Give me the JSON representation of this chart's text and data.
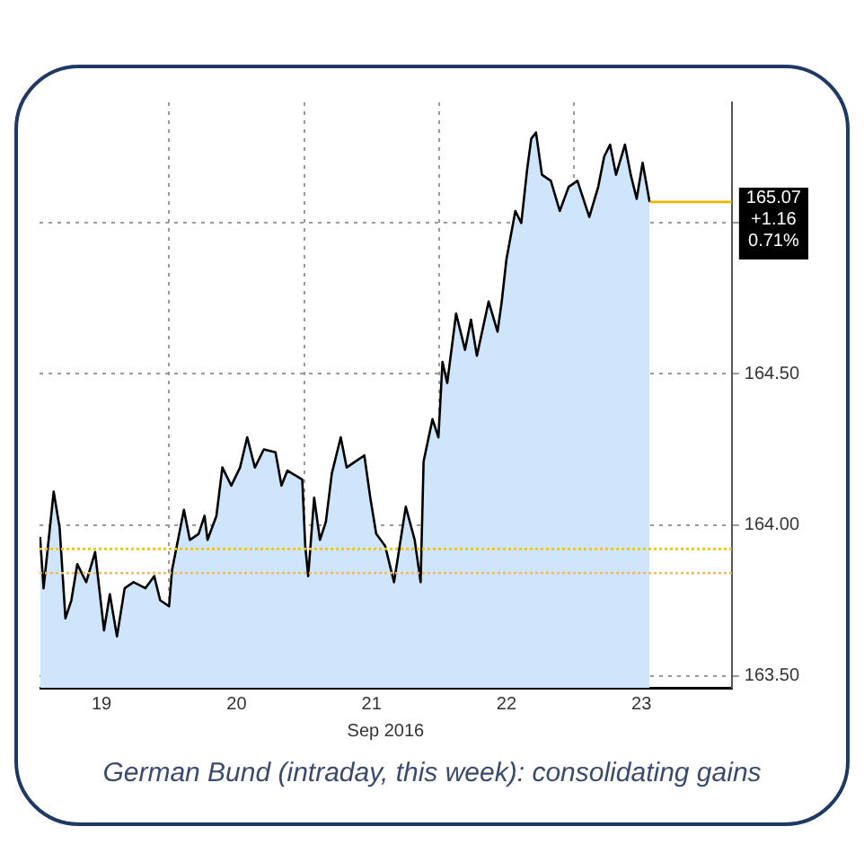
{
  "chart_data": {
    "type": "area",
    "title": "German Bund (intraday, this week): consolidating gains",
    "xlabel": "Sep 2016",
    "x": [
      18.544,
      18.57,
      18.645,
      18.689,
      18.732,
      18.776,
      18.82,
      18.886,
      18.952,
      19.018,
      19.061,
      19.114,
      19.171,
      19.237,
      19.325,
      19.39,
      19.434,
      19.5,
      19.522,
      19.61,
      19.654,
      19.719,
      19.763,
      19.785,
      19.851,
      19.895,
      19.961,
      20.026,
      20.079,
      20.136,
      20.202,
      20.289,
      20.333,
      20.377,
      20.487,
      20.509,
      20.531,
      20.575,
      20.618,
      20.662,
      20.706,
      20.772,
      20.816,
      20.882,
      20.947,
      20.991,
      21.035,
      21.101,
      21.167,
      21.254,
      21.32,
      21.364,
      21.386,
      21.452,
      21.496,
      21.526,
      21.561,
      21.627,
      21.693,
      21.737,
      21.781,
      21.868,
      21.934,
      21.965,
      22.0,
      22.066,
      22.11,
      22.154,
      22.184,
      22.219,
      22.263,
      22.329,
      22.395,
      22.461,
      22.526,
      22.57,
      22.614,
      22.68,
      22.724,
      22.768,
      22.812,
      22.878,
      22.921,
      22.965,
      23.009,
      23.061
    ],
    "series": [
      {
        "color": "#000000",
        "values": [
          163.96,
          163.79,
          164.11,
          163.99,
          163.69,
          163.75,
          163.87,
          163.81,
          163.91,
          163.65,
          163.77,
          163.63,
          163.79,
          163.81,
          163.79,
          163.83,
          163.75,
          163.73,
          163.85,
          164.05,
          163.95,
          163.97,
          164.03,
          163.95,
          164.03,
          164.19,
          164.13,
          164.19,
          164.29,
          164.19,
          164.25,
          164.24,
          164.13,
          164.18,
          164.15,
          163.93,
          163.83,
          164.09,
          163.95,
          164.01,
          164.17,
          164.29,
          164.19,
          164.21,
          164.23,
          164.09,
          163.97,
          163.93,
          163.81,
          164.06,
          163.95,
          163.81,
          164.21,
          164.35,
          164.29,
          164.54,
          164.47,
          164.7,
          164.58,
          164.68,
          164.56,
          164.74,
          164.64,
          164.74,
          164.88,
          165.04,
          165.0,
          165.18,
          165.28,
          165.3,
          165.16,
          165.14,
          165.04,
          165.12,
          165.14,
          165.08,
          165.02,
          165.12,
          165.22,
          165.26,
          165.16,
          165.26,
          165.16,
          165.08,
          165.2,
          165.07
        ]
      }
    ],
    "xlim": [
      18.54,
      23.67
    ],
    "xticks": [
      {
        "value": 19,
        "label": "19"
      },
      {
        "value": 19.5,
        "label": null
      },
      {
        "value": 20,
        "label": "20"
      },
      {
        "value": 20.5,
        "label": null
      },
      {
        "value": 21,
        "label": "21"
      },
      {
        "value": 21.5,
        "label": null
      },
      {
        "value": 22,
        "label": "22"
      },
      {
        "value": 22.5,
        "label": null
      },
      {
        "value": 23,
        "label": "23"
      }
    ],
    "ylim": [
      163.46,
      165.4
    ],
    "yticks": [
      {
        "value": 163.5,
        "label": "163.50"
      },
      {
        "value": 164,
        "label": "164.00"
      },
      {
        "value": 164.5,
        "label": "164.50"
      },
      {
        "value": 165,
        "label": null
      }
    ],
    "grid": true,
    "ref_lines": [
      {
        "axis": "y",
        "value": 165.07,
        "label": "165.07",
        "color": "#f0b400",
        "line_style": "solid"
      },
      {
        "axis": "y",
        "value": 163.92,
        "color": "#f5c400",
        "line_style": "dotted"
      },
      {
        "axis": "y",
        "value": 163.84,
        "color": "#f5b860",
        "line_style": "dotted"
      }
    ],
    "annotations": [
      "+1.16",
      "0.71%"
    ]
  }
}
